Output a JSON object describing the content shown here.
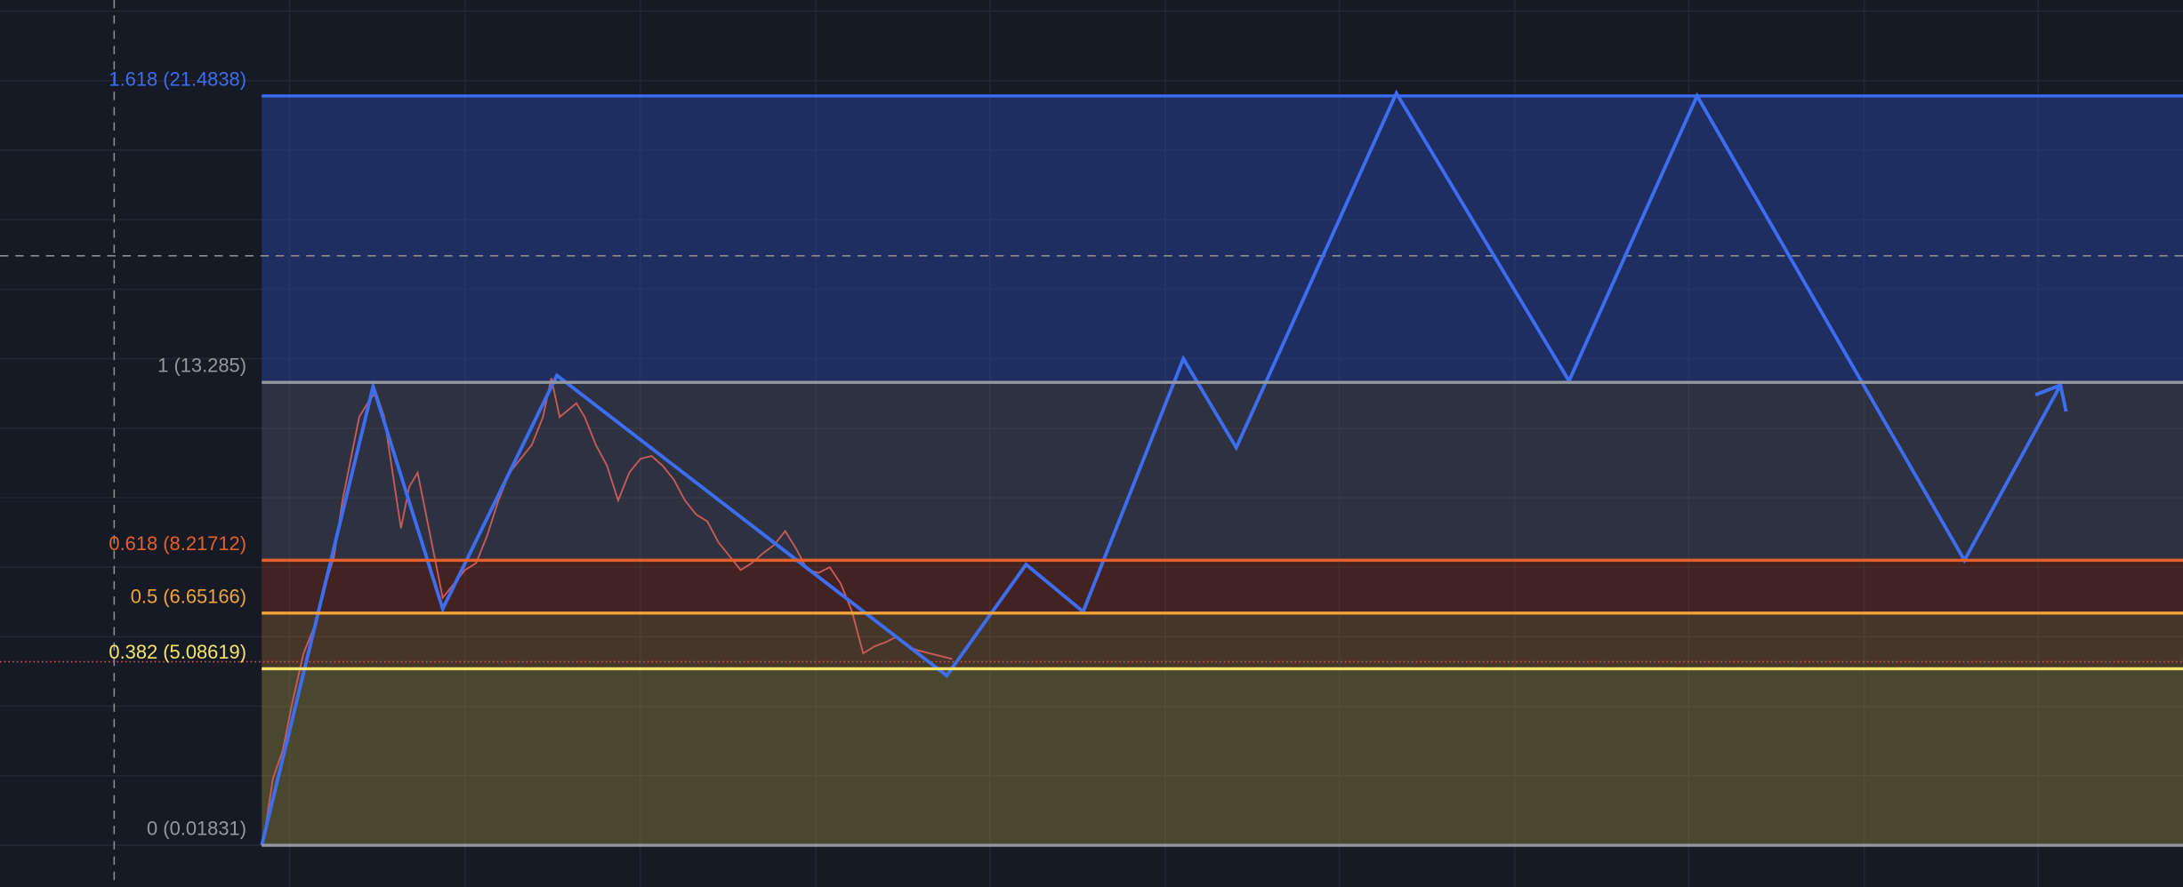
{
  "fib_levels": [
    {
      "label": "1.618 (21.4838)",
      "color": "#3d6df0"
    },
    {
      "label": "1 (13.285)",
      "color": "#9598a1"
    },
    {
      "label": "0.618 (8.21712)",
      "color": "#e5602a"
    },
    {
      "label": "0.5 (6.65166)",
      "color": "#f2a33a"
    },
    {
      "label": "0.382 (5.08619)",
      "color": "#f5e46a"
    },
    {
      "label": "0 (0.01831)",
      "color": "#9598a1"
    }
  ]
}
